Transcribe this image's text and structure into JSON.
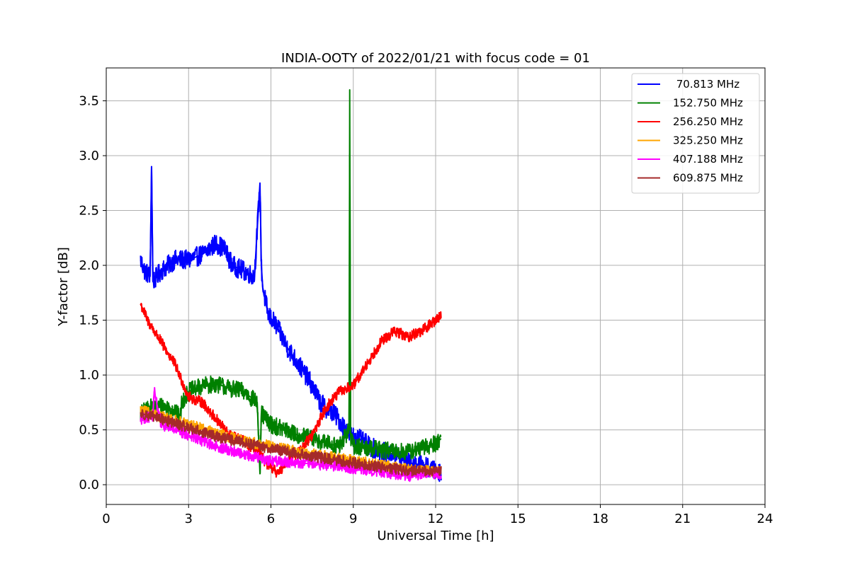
{
  "chart_data": {
    "type": "line",
    "title": "INDIA-OOTY of 2022/01/21 with focus code = 01",
    "xlabel": "Universal Time [h]",
    "ylabel": "Y-factor [dB]",
    "xlim": [
      0,
      24
    ],
    "ylim": [
      -0.18,
      3.8
    ],
    "xticks": [
      0,
      3,
      6,
      9,
      12,
      15,
      18,
      21,
      24
    ],
    "xtick_labels": [
      "0",
      "3",
      "6",
      "9",
      "12",
      "15",
      "18",
      "21",
      "24"
    ],
    "yticks": [
      0.0,
      0.5,
      1.0,
      1.5,
      2.0,
      2.5,
      3.0,
      3.5
    ],
    "ytick_labels": [
      "0.0",
      "0.5",
      "1.0",
      "1.5",
      "2.0",
      "2.5",
      "3.0",
      "3.5"
    ],
    "grid": true,
    "legend_position": "top-right",
    "series": [
      {
        "name": " 70.813 MHz",
        "color": "#0000ff",
        "noise": 0.09,
        "x": [
          1.25,
          1.4,
          1.6,
          1.65,
          1.7,
          2.0,
          2.5,
          3.0,
          3.5,
          4.0,
          4.3,
          4.6,
          5.0,
          5.4,
          5.6,
          5.65,
          5.7,
          5.9,
          6.2,
          6.6,
          7.0,
          7.4,
          7.8,
          8.0,
          8.3,
          8.6,
          8.9,
          9.2,
          9.6,
          10.0,
          10.5,
          11.0,
          11.5,
          12.0,
          12.2
        ],
        "y": [
          2.05,
          1.95,
          1.9,
          2.9,
          1.85,
          1.95,
          2.05,
          2.05,
          2.1,
          2.2,
          2.15,
          2.0,
          1.95,
          1.9,
          2.75,
          2.0,
          1.8,
          1.55,
          1.45,
          1.25,
          1.1,
          0.95,
          0.75,
          0.7,
          0.65,
          0.55,
          0.45,
          0.42,
          0.35,
          0.3,
          0.28,
          0.2,
          0.18,
          0.12,
          0.12
        ]
      },
      {
        "name": "152.750 MHz",
        "color": "#008000",
        "noise": 0.08,
        "x": [
          1.25,
          1.6,
          2.0,
          2.5,
          2.7,
          2.75,
          3.0,
          3.5,
          4.0,
          4.5,
          5.0,
          5.5,
          5.6,
          5.65,
          6.0,
          6.5,
          7.0,
          7.5,
          8.0,
          8.5,
          8.85,
          8.87,
          8.9,
          9.0,
          9.5,
          10.0,
          10.5,
          11.0,
          11.5,
          12.0,
          12.2
        ],
        "y": [
          0.65,
          0.7,
          0.72,
          0.68,
          0.6,
          0.75,
          0.85,
          0.9,
          0.92,
          0.88,
          0.85,
          0.75,
          0.1,
          0.65,
          0.55,
          0.5,
          0.45,
          0.42,
          0.38,
          0.35,
          0.5,
          3.6,
          0.45,
          0.35,
          0.34,
          0.32,
          0.3,
          0.3,
          0.33,
          0.38,
          0.42
        ]
      },
      {
        "name": "256.250 MHz",
        "color": "#ff0000",
        "noise": 0.05,
        "x": [
          1.25,
          1.5,
          2.0,
          2.5,
          3.0,
          3.5,
          4.0,
          4.5,
          5.0,
          5.5,
          6.0,
          6.3,
          6.5,
          7.0,
          7.5,
          8.0,
          8.5,
          9.0,
          9.5,
          10.0,
          10.5,
          11.0,
          11.5,
          12.0,
          12.2
        ],
        "y": [
          1.65,
          1.5,
          1.3,
          1.1,
          0.8,
          0.75,
          0.6,
          0.45,
          0.4,
          0.3,
          0.15,
          0.1,
          0.2,
          0.3,
          0.45,
          0.7,
          0.85,
          0.9,
          1.1,
          1.3,
          1.4,
          1.35,
          1.4,
          1.5,
          1.55
        ]
      },
      {
        "name": "325.250 MHz",
        "color": "#ffa500",
        "noise": 0.05,
        "x": [
          1.25,
          2.0,
          3.0,
          4.0,
          5.0,
          6.0,
          7.0,
          8.0,
          9.0,
          10.0,
          11.0,
          12.0,
          12.2
        ],
        "y": [
          0.68,
          0.62,
          0.55,
          0.47,
          0.4,
          0.35,
          0.3,
          0.26,
          0.22,
          0.18,
          0.14,
          0.12,
          0.12
        ]
      },
      {
        "name": "407.188 MHz",
        "color": "#ff00ff",
        "noise": 0.05,
        "x": [
          1.25,
          1.7,
          1.75,
          2.0,
          3.0,
          4.0,
          5.0,
          6.0,
          7.0,
          8.0,
          9.0,
          10.0,
          11.0,
          12.0,
          12.2
        ],
        "y": [
          0.6,
          0.62,
          0.85,
          0.55,
          0.45,
          0.35,
          0.28,
          0.22,
          0.2,
          0.18,
          0.15,
          0.12,
          0.08,
          0.1,
          0.1
        ]
      },
      {
        "name": "609.875 MHz",
        "color": "#a52a2a",
        "noise": 0.05,
        "x": [
          1.25,
          2.0,
          3.0,
          4.0,
          5.0,
          6.0,
          7.0,
          8.0,
          9.0,
          10.0,
          11.0,
          12.0,
          12.2
        ],
        "y": [
          0.65,
          0.6,
          0.52,
          0.44,
          0.38,
          0.33,
          0.28,
          0.24,
          0.2,
          0.16,
          0.13,
          0.12,
          0.13
        ]
      }
    ]
  }
}
